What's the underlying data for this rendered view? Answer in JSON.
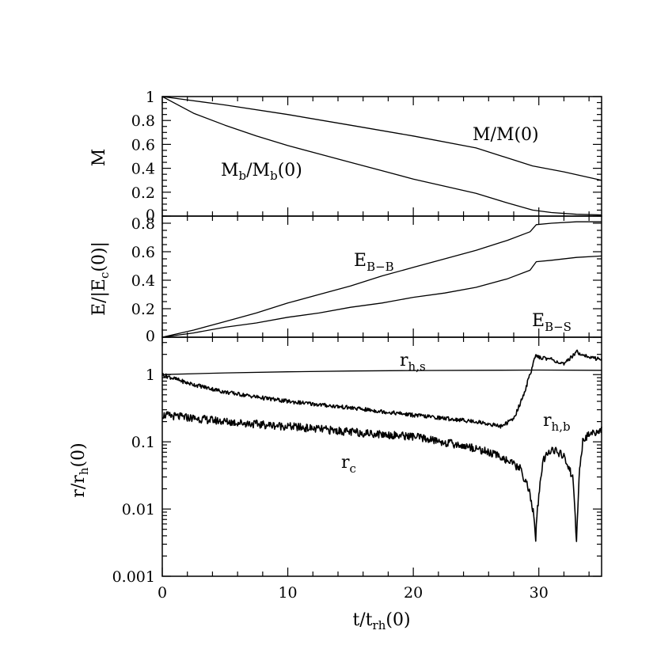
{
  "chart_data": [
    {
      "type": "line",
      "panel": "mass",
      "ylabel": "M",
      "ylim": [
        0,
        1
      ],
      "xlim": [
        0,
        35
      ],
      "yticks": [
        "0",
        "0.2",
        "0.4",
        "0.6",
        "0.8",
        "1"
      ],
      "ytick_values": [
        0,
        0.2,
        0.4,
        0.6,
        0.8,
        1
      ],
      "series": [
        {
          "name": "M/M(0)",
          "x": [
            0,
            5,
            10,
            15,
            20,
            25,
            29.5,
            32,
            35
          ],
          "y": [
            1.0,
            0.93,
            0.85,
            0.76,
            0.67,
            0.57,
            0.42,
            0.37,
            0.3
          ]
        },
        {
          "name": "M_b/M_b(0)",
          "x": [
            0,
            2.5,
            5,
            7.5,
            10,
            12.5,
            15,
            17.5,
            20,
            22.5,
            25,
            27.5,
            29.5,
            31,
            33,
            35
          ],
          "y": [
            1.0,
            0.86,
            0.76,
            0.67,
            0.59,
            0.52,
            0.45,
            0.38,
            0.31,
            0.25,
            0.19,
            0.11,
            0.05,
            0.03,
            0.015,
            0.01
          ]
        }
      ],
      "annotations": [
        {
          "main": "M/M(0)",
          "sub": "",
          "tail": ""
        },
        {
          "main": "M",
          "sub": "b",
          "tail": "/M"
        },
        {
          "main": "",
          "sub": "b",
          "tail": "(0)"
        }
      ]
    },
    {
      "type": "line",
      "panel": "energy",
      "ylabel": "E/|E_c(0)|",
      "ylim": [
        0,
        0.85
      ],
      "xlim": [
        0,
        35
      ],
      "yticks": [
        "0",
        "0.2",
        "0.4",
        "0.6",
        "0.8"
      ],
      "ytick_values": [
        0,
        0.2,
        0.4,
        0.6,
        0.8
      ],
      "series": [
        {
          "name": "E_B-B",
          "x": [
            0,
            2.5,
            5,
            7.5,
            10,
            12.5,
            15,
            17.5,
            20,
            22.5,
            25,
            27.5,
            29.3,
            29.8,
            31,
            33,
            35
          ],
          "y": [
            0.0,
            0.05,
            0.11,
            0.17,
            0.24,
            0.3,
            0.36,
            0.43,
            0.49,
            0.55,
            0.61,
            0.68,
            0.74,
            0.79,
            0.8,
            0.81,
            0.81
          ]
        },
        {
          "name": "E_B-S",
          "x": [
            0,
            2.5,
            5,
            7.5,
            10,
            12.5,
            15,
            17.5,
            20,
            22.5,
            25,
            27.5,
            29.3,
            29.8,
            31,
            33,
            35
          ],
          "y": [
            0.0,
            0.03,
            0.07,
            0.1,
            0.14,
            0.17,
            0.21,
            0.24,
            0.28,
            0.31,
            0.35,
            0.41,
            0.47,
            0.53,
            0.54,
            0.56,
            0.57
          ]
        }
      ],
      "annotations": [
        {
          "main": "E",
          "sub": "B−B"
        },
        {
          "main": "E",
          "sub": "B−S"
        }
      ]
    },
    {
      "type": "line",
      "panel": "radii",
      "yscale": "log",
      "ylabel": "r/r_h(0)",
      "ylim": [
        0.001,
        3.6
      ],
      "xlim": [
        0,
        35
      ],
      "xlabel": "t/t_rh(0)",
      "xticks": [
        "0",
        "10",
        "20",
        "30"
      ],
      "xtick_values": [
        0,
        10,
        20,
        30
      ],
      "yticks": [
        "0.001",
        "0.01",
        "0.1",
        "1"
      ],
      "ytick_values": [
        0.001,
        0.01,
        0.1,
        1
      ],
      "series": [
        {
          "name": "r_h,s",
          "x": [
            0,
            5,
            10,
            15,
            20,
            25,
            30,
            35
          ],
          "y": [
            1.0,
            1.06,
            1.1,
            1.13,
            1.15,
            1.16,
            1.17,
            1.16
          ]
        },
        {
          "name": "r_h,b",
          "x": [
            0,
            2,
            5,
            8,
            10,
            15,
            20,
            25,
            27,
            28,
            28.7,
            29.3,
            29.7,
            31,
            32,
            33,
            34,
            35
          ],
          "y": [
            1.0,
            0.75,
            0.55,
            0.45,
            0.4,
            0.32,
            0.25,
            0.2,
            0.17,
            0.22,
            0.45,
            1.0,
            1.85,
            1.7,
            1.4,
            2.2,
            1.8,
            1.7
          ]
        },
        {
          "name": "r_c",
          "x": [
            0,
            2,
            5,
            8,
            10,
            15,
            20,
            25,
            27,
            28.5,
            29.2,
            29.6,
            29.75,
            29.9,
            30.3,
            31,
            32,
            32.7,
            33.0,
            33.2,
            33.5,
            34,
            35
          ],
          "y": [
            0.25,
            0.23,
            0.2,
            0.18,
            0.17,
            0.14,
            0.12,
            0.08,
            0.06,
            0.04,
            0.02,
            0.008,
            0.0037,
            0.01,
            0.05,
            0.08,
            0.06,
            0.03,
            0.0035,
            0.03,
            0.1,
            0.13,
            0.15
          ]
        }
      ],
      "annotations": [
        {
          "main": "r",
          "sub": "h,s"
        },
        {
          "main": "r",
          "sub": "h,b"
        },
        {
          "main": "r",
          "sub": "c"
        }
      ]
    }
  ]
}
